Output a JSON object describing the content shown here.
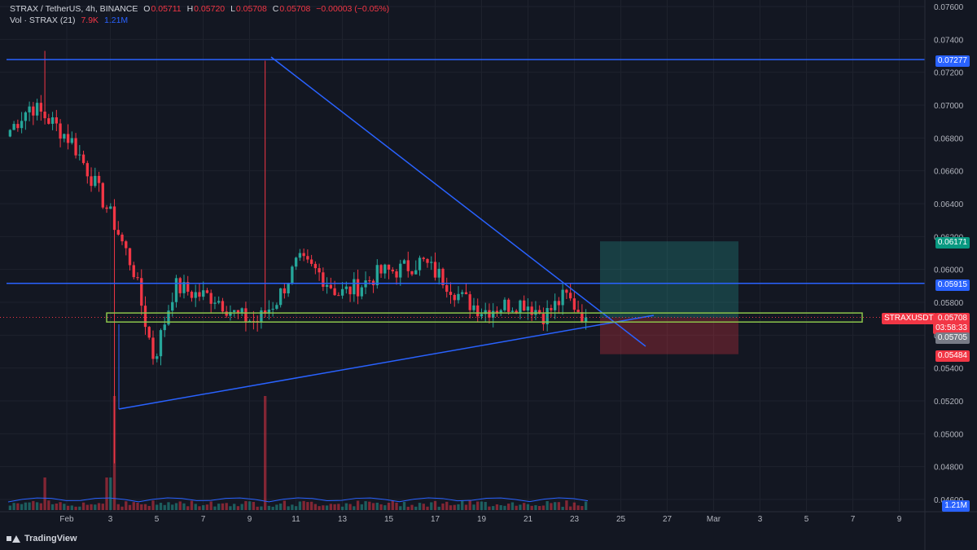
{
  "header": {
    "symbol_line": "STRAX / TetherUS, 4h, BINANCE",
    "ohlc": {
      "o_label": "O",
      "o": "0.05711",
      "h_label": "H",
      "h": "0.05720",
      "l_label": "L",
      "l": "0.05708",
      "c_label": "C",
      "c": "0.05708",
      "change": "−0.00003 (−0.05%)"
    },
    "vol_label": "Vol · STRAX (21)",
    "vol_value": "7.9K",
    "vol_ma": "1.21M"
  },
  "branding": {
    "logo_text": "TradingView"
  },
  "price_scale": {
    "ticks": [
      "0.07600",
      "0.07400",
      "0.07200",
      "0.07000",
      "0.06800",
      "0.06600",
      "0.06400",
      "0.06200",
      "0.06000",
      "0.05800",
      "0.05600",
      "0.05400",
      "0.05200",
      "0.05000",
      "0.04800",
      "0.04600"
    ],
    "tick_values": [
      0.076,
      0.074,
      0.072,
      0.07,
      0.068,
      0.066,
      0.064,
      0.062,
      0.06,
      0.058,
      0.056,
      0.054,
      0.052,
      0.05,
      0.048,
      0.046
    ],
    "tags": {
      "resistance_top": "0.07277",
      "target": "0.06171",
      "resistance_mid": "0.05915",
      "last_price": "0.05708",
      "countdown": "03:58:33",
      "support": "0.05705",
      "stop": "0.05484",
      "symbol": "STRAXUSDT",
      "volume_ma": "1.21M"
    }
  },
  "time_axis": {
    "labels": [
      "Feb",
      "3",
      "5",
      "7",
      "9",
      "11",
      "13",
      "15",
      "17",
      "19",
      "21",
      "23",
      "25",
      "27",
      "Mar",
      "3",
      "5",
      "7",
      "9"
    ]
  },
  "colors": {
    "background": "#131722",
    "up": "#26a69a",
    "down": "#f23645",
    "drawing_blue": "#2962ff",
    "support_box": "#8bc34a",
    "target_zone": "rgba(38,166,154,0.28)",
    "stop_zone": "rgba(242,54,69,0.28)"
  },
  "chart_data": {
    "type": "candlestick",
    "symbol": "STRAX / TetherUS",
    "interval": "4h",
    "exchange": "BINANCE",
    "ylim": [
      0.0458,
      0.0765
    ],
    "horizontal_levels": [
      0.07277,
      0.05915
    ],
    "support_zone": [
      0.0568,
      0.05735
    ],
    "position": {
      "entry": 0.05705,
      "target": 0.06171,
      "stop": 0.05484
    },
    "close_path": [
      {
        "date": "Jan 30",
        "value": 0.0685
      },
      {
        "date": "Jan 31",
        "value": 0.07
      },
      {
        "date": "Feb 1",
        "value": 0.069
      },
      {
        "date": "Feb 1 12h",
        "value": 0.0678
      },
      {
        "date": "Feb 2",
        "value": 0.0655
      },
      {
        "date": "Feb 2 12h",
        "value": 0.063
      },
      {
        "date": "Feb 3",
        "value": 0.06
      },
      {
        "date": "Feb 3 12h",
        "value": 0.0545
      },
      {
        "date": "Feb 4",
        "value": 0.059
      },
      {
        "date": "Feb 5",
        "value": 0.0585
      },
      {
        "date": "Feb 6",
        "value": 0.0583
      },
      {
        "date": "Feb 7",
        "value": 0.0572
      },
      {
        "date": "Feb 8",
        "value": 0.0568
      },
      {
        "date": "Feb 9",
        "value": 0.0582
      },
      {
        "date": "Feb 10",
        "value": 0.0605
      },
      {
        "date": "Feb 11",
        "value": 0.0598
      },
      {
        "date": "Feb 12",
        "value": 0.0585
      },
      {
        "date": "Feb 13",
        "value": 0.059
      },
      {
        "date": "Feb 14",
        "value": 0.0598
      },
      {
        "date": "Feb 15",
        "value": 0.06
      },
      {
        "date": "Feb 16",
        "value": 0.0605
      },
      {
        "date": "Feb 17",
        "value": 0.0595
      },
      {
        "date": "Feb 18",
        "value": 0.0582
      },
      {
        "date": "Feb 19",
        "value": 0.0575
      },
      {
        "date": "Feb 20",
        "value": 0.0578
      },
      {
        "date": "Feb 21",
        "value": 0.058
      },
      {
        "date": "Feb 22",
        "value": 0.0572
      },
      {
        "date": "Feb 23",
        "value": 0.0584
      },
      {
        "date": "Feb 23 12h",
        "value": 0.05708
      }
    ],
    "spikes": [
      {
        "date": "Jan 31",
        "high": 0.0733
      },
      {
        "date": "Feb 3",
        "low": 0.0482
      },
      {
        "date": "Feb 10",
        "high": 0.0727
      }
    ]
  }
}
